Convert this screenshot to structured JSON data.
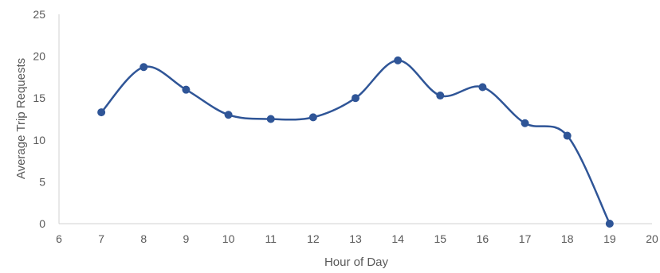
{
  "chart_data": {
    "type": "line",
    "smooth": true,
    "xlabel": "Hour of Day",
    "ylabel": "Average Trip Requests",
    "xlim": [
      6,
      20
    ],
    "ylim": [
      0,
      25
    ],
    "xticks": [
      6,
      7,
      8,
      9,
      10,
      11,
      12,
      13,
      14,
      15,
      16,
      17,
      18,
      19,
      20
    ],
    "yticks": [
      0,
      5,
      10,
      15,
      20,
      25
    ],
    "grid": false,
    "legend": "none",
    "series": [
      {
        "color": "#2f5597",
        "x": [
          7,
          8,
          9,
          10,
          11,
          12,
          13,
          14,
          15,
          16,
          17,
          18,
          19
        ],
        "y": [
          13.3,
          18.7,
          16.0,
          13.0,
          12.5,
          12.7,
          15.0,
          19.5,
          15.3,
          16.3,
          12.0,
          10.5,
          0.0
        ]
      }
    ]
  }
}
